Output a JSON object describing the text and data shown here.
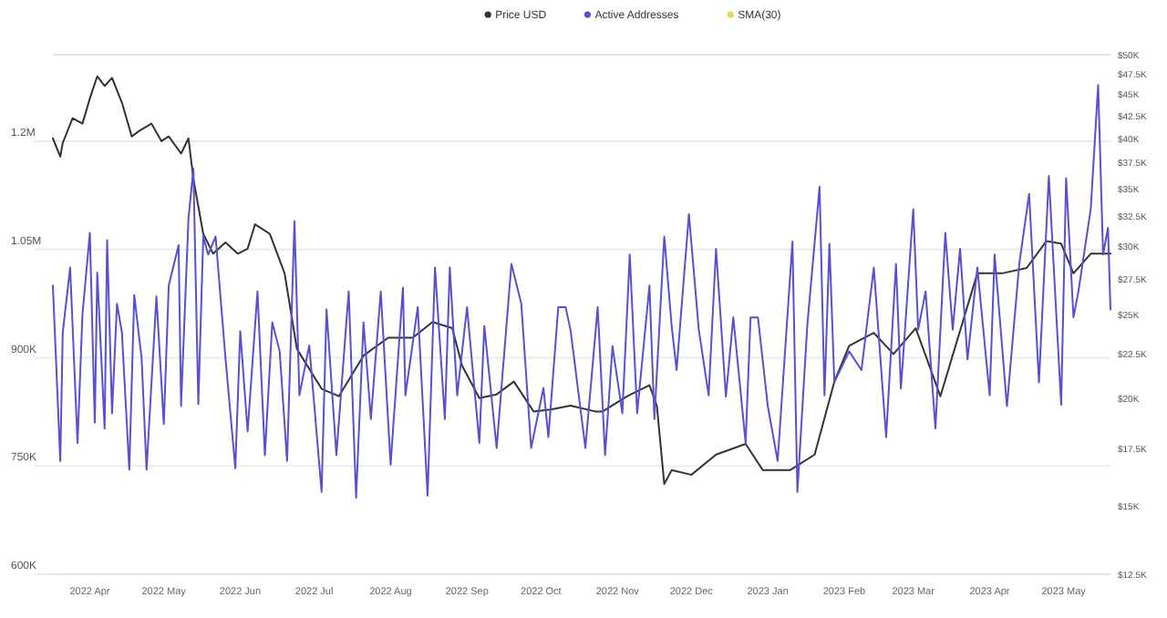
{
  "chart_data": {
    "type": "line",
    "legend": "top",
    "grid": "y",
    "log": "y2",
    "xlim": [
      "2022-03-17",
      "2023-05-20"
    ],
    "xticks": [
      {
        "value": "2022-04-01",
        "label": "2022 Apr"
      },
      {
        "value": "2022-05-01",
        "label": "2022 May"
      },
      {
        "value": "2022-06-01",
        "label": "2022 Jun"
      },
      {
        "value": "2022-07-01",
        "label": "2022 Jul"
      },
      {
        "value": "2022-08-01",
        "label": "2022 Aug"
      },
      {
        "value": "2022-09-01",
        "label": "2022 Sep"
      },
      {
        "value": "2022-10-01",
        "label": "2022 Oct"
      },
      {
        "value": "2022-11-01",
        "label": "2022 Nov"
      },
      {
        "value": "2022-12-01",
        "label": "2022 Dec"
      },
      {
        "value": "2023-01-01",
        "label": "2023 Jan"
      },
      {
        "value": "2023-02-01",
        "label": "2023 Feb"
      },
      {
        "value": "2023-03-01",
        "label": "2023 Mar"
      },
      {
        "value": "2023-04-01",
        "label": "2023 Apr"
      },
      {
        "value": "2023-05-01",
        "label": "2023 May"
      }
    ],
    "ylim": [
      600000,
      1320000
    ],
    "yticks": [
      {
        "value": 600000,
        "label": "600K"
      },
      {
        "value": 750000,
        "label": "750K"
      },
      {
        "value": 900000,
        "label": "900K"
      },
      {
        "value": 1050000,
        "label": "1.05M"
      },
      {
        "value": 1200000,
        "label": "1.2M"
      }
    ],
    "y2lim": [
      12500,
      50000
    ],
    "y2ticks": [
      {
        "value": 12500,
        "label": "$12.5K"
      },
      {
        "value": 15000,
        "label": "$15K"
      },
      {
        "value": 17500,
        "label": "$17.5K"
      },
      {
        "value": 20000,
        "label": "$20K"
      },
      {
        "value": 22500,
        "label": "$22.5K"
      },
      {
        "value": 25000,
        "label": "$25K"
      },
      {
        "value": 27500,
        "label": "$27.5K"
      },
      {
        "value": 30000,
        "label": "$30K"
      },
      {
        "value": 32500,
        "label": "$32.5K"
      },
      {
        "value": 35000,
        "label": "$35K"
      },
      {
        "value": 37500,
        "label": "$37.5K"
      },
      {
        "value": 40000,
        "label": "$40K"
      },
      {
        "value": 42500,
        "label": "$42.5K"
      },
      {
        "value": 45000,
        "label": "$45K"
      },
      {
        "value": 47500,
        "label": "$47.5K"
      },
      {
        "value": 50000,
        "label": "$50K"
      }
    ],
    "series": [
      {
        "name": "Price USD",
        "color": "#333333",
        "axis": "y2",
        "x": [
          "2022-03-17",
          "2022-03-20",
          "2022-03-21",
          "2022-03-25",
          "2022-03-29",
          "2022-04-01",
          "2022-04-04",
          "2022-04-07",
          "2022-04-10",
          "2022-04-14",
          "2022-04-18",
          "2022-04-21",
          "2022-04-26",
          "2022-04-30",
          "2022-05-03",
          "2022-05-08",
          "2022-05-11",
          "2022-05-13",
          "2022-05-17",
          "2022-05-21",
          "2022-05-26",
          "2022-05-31",
          "2022-06-04",
          "2022-06-07",
          "2022-06-13",
          "2022-06-19",
          "2022-06-24",
          "2022-07-04",
          "2022-07-11",
          "2022-07-21",
          "2022-07-31",
          "2022-08-10",
          "2022-08-18",
          "2022-08-26",
          "2022-08-30",
          "2022-09-06",
          "2022-09-13",
          "2022-09-20",
          "2022-09-28",
          "2022-10-05",
          "2022-10-13",
          "2022-10-23",
          "2022-10-26",
          "2022-11-05",
          "2022-11-14",
          "2022-11-17",
          "2022-11-20",
          "2022-11-23",
          "2022-12-01",
          "2022-12-11",
          "2022-12-23",
          "2022-12-30",
          "2023-01-10",
          "2023-01-20",
          "2023-01-28",
          "2023-02-03",
          "2023-02-13",
          "2023-02-21",
          "2023-03-02",
          "2023-03-12",
          "2023-03-27",
          "2023-04-06",
          "2023-04-16",
          "2023-04-24",
          "2023-04-30",
          "2023-05-05",
          "2023-05-12",
          "2023-05-20"
        ],
        "values": [
          40000,
          38100,
          39500,
          42200,
          41600,
          44500,
          47200,
          46000,
          47000,
          44000,
          40200,
          40800,
          41600,
          39700,
          40200,
          38400,
          40000,
          35900,
          31000,
          29400,
          30300,
          29400,
          29800,
          31800,
          31000,
          27900,
          22800,
          20500,
          20100,
          22400,
          23500,
          23500,
          24500,
          24100,
          21800,
          20000,
          20200,
          20900,
          19300,
          19400,
          19600,
          19300,
          19300,
          20100,
          20700,
          19600,
          15900,
          16500,
          16300,
          17200,
          17700,
          16500,
          16500,
          17200,
          20900,
          23000,
          23800,
          22500,
          24100,
          20100,
          27900,
          27900,
          28300,
          30400,
          30200,
          27900,
          29400,
          29400
        ]
      },
      {
        "name": "Active Addresses",
        "color": "#5a4fcf",
        "x": [
          "2022-03-17",
          "2022-03-20",
          "2022-03-21",
          "2022-03-24",
          "2022-03-27",
          "2022-03-29",
          "2022-04-01",
          "2022-04-03",
          "2022-04-04",
          "2022-04-07",
          "2022-04-08",
          "2022-04-10",
          "2022-04-12",
          "2022-04-14",
          "2022-04-17",
          "2022-04-19",
          "2022-04-22",
          "2022-04-24",
          "2022-04-28",
          "2022-05-01",
          "2022-05-03",
          "2022-05-07",
          "2022-05-08",
          "2022-05-11",
          "2022-05-13",
          "2022-05-15",
          "2022-05-17",
          "2022-05-19",
          "2022-05-22",
          "2022-05-26",
          "2022-05-30",
          "2022-06-01",
          "2022-06-04",
          "2022-06-08",
          "2022-06-11",
          "2022-06-14",
          "2022-06-17",
          "2022-06-20",
          "2022-06-23",
          "2022-06-25",
          "2022-06-29",
          "2022-07-04",
          "2022-07-06",
          "2022-07-10",
          "2022-07-15",
          "2022-07-18",
          "2022-07-21",
          "2022-07-24",
          "2022-07-28",
          "2022-08-01",
          "2022-08-06",
          "2022-08-07",
          "2022-08-12",
          "2022-08-16",
          "2022-08-19",
          "2022-08-23",
          "2022-08-25",
          "2022-08-28",
          "2022-09-01",
          "2022-09-06",
          "2022-09-08",
          "2022-09-13",
          "2022-09-19",
          "2022-09-23",
          "2022-09-27",
          "2022-10-02",
          "2022-10-04",
          "2022-10-08",
          "2022-10-11",
          "2022-10-13",
          "2022-10-19",
          "2022-10-24",
          "2022-10-27",
          "2022-10-30",
          "2022-11-03",
          "2022-11-06",
          "2022-11-09",
          "2022-11-14",
          "2022-11-16",
          "2022-11-20",
          "2022-11-23",
          "2022-11-25",
          "2022-11-30",
          "2022-12-04",
          "2022-12-08",
          "2022-12-11",
          "2022-12-15",
          "2022-12-18",
          "2022-12-23",
          "2022-12-25",
          "2022-12-28",
          "2023-01-01",
          "2023-01-05",
          "2023-01-11",
          "2023-01-13",
          "2023-01-17",
          "2023-01-22",
          "2023-01-24",
          "2023-01-26",
          "2023-01-28",
          "2023-02-03",
          "2023-02-08",
          "2023-02-13",
          "2023-02-18",
          "2023-02-22",
          "2023-02-24",
          "2023-03-01",
          "2023-03-03",
          "2023-03-06",
          "2023-03-10",
          "2023-03-14",
          "2023-03-17",
          "2023-03-20",
          "2023-03-23",
          "2023-03-27",
          "2023-04-01",
          "2023-04-03",
          "2023-04-08",
          "2023-04-13",
          "2023-04-17",
          "2023-04-21",
          "2023-04-25",
          "2023-04-30",
          "2023-05-02",
          "2023-05-05",
          "2023-05-07",
          "2023-05-12",
          "2023-05-15",
          "2023-05-17",
          "2023-05-19",
          "2023-05-20"
        ],
        "values": [
          1000000,
          757000,
          935000,
          1025000,
          782000,
          960000,
          1073000,
          810000,
          1018000,
          802000,
          1063000,
          823000,
          975000,
          935000,
          745000,
          987000,
          899000,
          745000,
          985000,
          808000,
          1000000,
          1056000,
          833000,
          1093000,
          1162000,
          836000,
          1068000,
          1043000,
          1068000,
          900000,
          747000,
          937000,
          798000,
          992000,
          765000,
          949000,
          909000,
          757000,
          1089000,
          848000,
          917000,
          714000,
          967000,
          765000,
          992000,
          706000,
          949000,
          815000,
          992000,
          752000,
          997000,
          848000,
          970000,
          709000,
          1025000,
          815000,
          1025000,
          848000,
          970000,
          782000,
          944000,
          775000,
          1030000,
          975000,
          775000,
          858000,
          790000,
          970000,
          970000,
          938000,
          775000,
          970000,
          765000,
          916000,
          823000,
          1043000,
          823000,
          1000000,
          815000,
          1068000,
          944000,
          883000,
          1099000,
          939000,
          848000,
          1051000,
          846000,
          956000,
          782000,
          956000,
          956000,
          833000,
          757000,
          1061000,
          714000,
          944000,
          1137000,
          848000,
          1058000,
          866000,
          909000,
          883000,
          1025000,
          790000,
          1030000,
          857000,
          1106000,
          939000,
          992000,
          802000,
          1073000,
          939000,
          1051000,
          898000,
          1025000,
          848000,
          1043000,
          833000,
          1030000,
          1127000,
          866000,
          1152000,
          835000,
          1149000,
          956000,
          992000,
          1106000,
          1278000,
          1043000,
          1080000,
          967000
        ]
      },
      {
        "name": "SMA(30)",
        "color": "#e8d66b"
      }
    ]
  }
}
